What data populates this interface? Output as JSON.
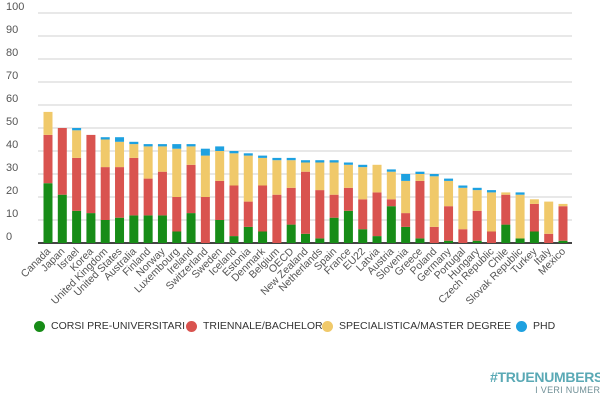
{
  "chart_data": {
    "type": "bar",
    "stacked": true,
    "title": "",
    "xlabel": "",
    "ylabel": "",
    "ylim": [
      0,
      100
    ],
    "yticks": [
      0,
      10,
      20,
      30,
      40,
      50,
      60,
      70,
      80,
      90,
      100
    ],
    "grid": true,
    "legend_position": "bottom",
    "categories": [
      "Canada",
      "Japan",
      "Israel",
      "Korea",
      "United Kingdom",
      "United States",
      "Australia",
      "Finland",
      "Norway",
      "Luxembourg",
      "Ireland",
      "Switzerland",
      "Sweden",
      "Iceland",
      "Estonia",
      "Denmark",
      "Belgium",
      "OECD",
      "New Zealand",
      "Netherlands",
      "Spain",
      "France",
      "EU22",
      "Latvia",
      "Austria",
      "Slovenia",
      "Greece",
      "Poland",
      "Germany",
      "Portugal",
      "Hungary",
      "Czech Republic",
      "Chile",
      "Slovak Republic",
      "Turkey",
      "Italy",
      "Mexico"
    ],
    "series": [
      {
        "name": "CORSI PRE-UNIVERSITARI",
        "color": "#178c17",
        "values": [
          26,
          21,
          14,
          13,
          10,
          11,
          12,
          12,
          12,
          5,
          13,
          0,
          10,
          3,
          7,
          5,
          0,
          8,
          4,
          2,
          11,
          14,
          6,
          3,
          16,
          7,
          2,
          0,
          1,
          0,
          1,
          0,
          8,
          2,
          5,
          0,
          1
        ]
      },
      {
        "name": "TRIENNALE/BACHELOR",
        "color": "#d9534f",
        "values": [
          21,
          29,
          23,
          34,
          23,
          22,
          25,
          16,
          19,
          15,
          21,
          20,
          17,
          22,
          11,
          20,
          21,
          16,
          27,
          21,
          10,
          10,
          13,
          19,
          3,
          6,
          25,
          7,
          15,
          6,
          13,
          5,
          13,
          0,
          12,
          4,
          15
        ]
      },
      {
        "name": "SPECIALISTICA/MASTER DEGREE",
        "color": "#f0c96a",
        "values": [
          10,
          0,
          12,
          0,
          12,
          11,
          6,
          14,
          11,
          21,
          8,
          18,
          13,
          14,
          20,
          12,
          15,
          12,
          4,
          12,
          14,
          10,
          14,
          12,
          12,
          14,
          3,
          22,
          11,
          18,
          9,
          17,
          1,
          19,
          2,
          14,
          1
        ]
      },
      {
        "name": "PHD",
        "color": "#1ea1e0",
        "values": [
          0,
          0,
          1,
          0,
          1,
          2,
          1,
          1,
          1,
          2,
          1,
          3,
          2,
          1,
          1,
          1,
          1,
          1,
          1,
          1,
          1,
          1,
          1,
          0,
          1,
          3,
          1,
          1,
          1,
          1,
          1,
          1,
          0,
          1,
          0,
          0,
          0
        ]
      }
    ]
  },
  "logo": {
    "main": "#TRUENUMBERS",
    "sub": "I VERI NUMERI"
  }
}
